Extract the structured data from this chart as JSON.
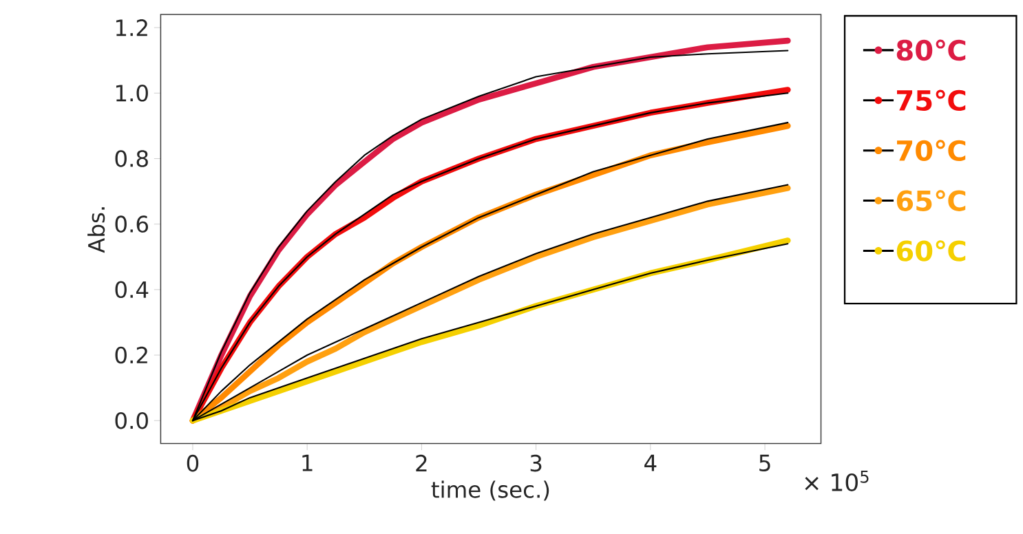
{
  "chart_data": {
    "type": "line",
    "xlabel": "time (sec.)",
    "ylabel": "Abs.",
    "annotations": [
      "× 10$^{5}$"
    ],
    "legend": "right",
    "x": [
      0,
      0.25,
      0.5,
      0.75,
      1,
      1.25,
      1.5,
      1.75,
      2,
      2.5,
      3,
      3.5,
      4,
      4.5,
      5.2
    ],
    "xlim": [
      -0.28,
      5.49
    ],
    "ylim": [
      -0.07,
      1.24
    ],
    "xticks": [
      0,
      1,
      2,
      3,
      4,
      5
    ],
    "yticks": [
      {
        "value": 0,
        "label": "0.0"
      },
      {
        "value": 0.2,
        "label": "0.2"
      },
      {
        "value": 0.4,
        "label": "0.4"
      },
      {
        "value": 0.6,
        "label": "0.6"
      },
      {
        "value": 0.8,
        "label": "0.8"
      },
      {
        "value": 1.0,
        "label": "1.0"
      },
      {
        "value": 1.2,
        "label": "1.2"
      }
    ],
    "series": [
      {
        "name": "80℃",
        "color": "#dc1c44",
        "values": [
          0,
          0.2,
          0.38,
          0.52,
          0.63,
          0.72,
          0.79,
          0.86,
          0.91,
          0.98,
          1.03,
          1.08,
          1.11,
          1.14,
          1.16
        ]
      },
      {
        "name": "75℃",
        "color": "#f20d0d",
        "values": [
          0,
          0.16,
          0.3,
          0.41,
          0.5,
          0.57,
          0.62,
          0.68,
          0.73,
          0.8,
          0.86,
          0.9,
          0.94,
          0.97,
          1.01
        ]
      },
      {
        "name": "70℃",
        "color": "#ff8a00",
        "values": [
          0,
          0.07,
          0.15,
          0.23,
          0.3,
          0.36,
          0.42,
          0.48,
          0.53,
          0.62,
          0.69,
          0.75,
          0.81,
          0.85,
          0.9
        ]
      },
      {
        "name": "65℃",
        "color": "#ffa010",
        "values": [
          0,
          0.04,
          0.09,
          0.13,
          0.18,
          0.22,
          0.27,
          0.31,
          0.35,
          0.43,
          0.5,
          0.56,
          0.61,
          0.66,
          0.71
        ]
      },
      {
        "name": "60℃",
        "color": "#f5d000",
        "values": [
          0,
          0.03,
          0.06,
          0.09,
          0.12,
          0.15,
          0.18,
          0.21,
          0.24,
          0.29,
          0.35,
          0.4,
          0.45,
          0.49,
          0.55
        ]
      },
      {
        "color": "#000000",
        "values": [
          0,
          0.21,
          0.39,
          0.53,
          0.64,
          0.73,
          0.81,
          0.87,
          0.92,
          0.99,
          1.05,
          1.08,
          1.11,
          1.12,
          1.13
        ]
      },
      {
        "color": "#000000",
        "values": [
          0,
          0.16,
          0.3,
          0.41,
          0.5,
          0.57,
          0.63,
          0.69,
          0.73,
          0.8,
          0.86,
          0.9,
          0.94,
          0.97,
          1.0
        ]
      },
      {
        "color": "#000000",
        "values": [
          0,
          0.09,
          0.17,
          0.24,
          0.31,
          0.37,
          0.43,
          0.48,
          0.53,
          0.62,
          0.69,
          0.76,
          0.81,
          0.86,
          0.91
        ]
      },
      {
        "color": "#000000",
        "values": [
          0,
          0.05,
          0.1,
          0.15,
          0.2,
          0.24,
          0.28,
          0.32,
          0.36,
          0.44,
          0.51,
          0.57,
          0.62,
          0.67,
          0.72
        ]
      },
      {
        "color": "#000000",
        "values": [
          0,
          0.03,
          0.07,
          0.1,
          0.13,
          0.16,
          0.19,
          0.22,
          0.25,
          0.3,
          0.35,
          0.4,
          0.45,
          0.49,
          0.54
        ]
      }
    ]
  }
}
